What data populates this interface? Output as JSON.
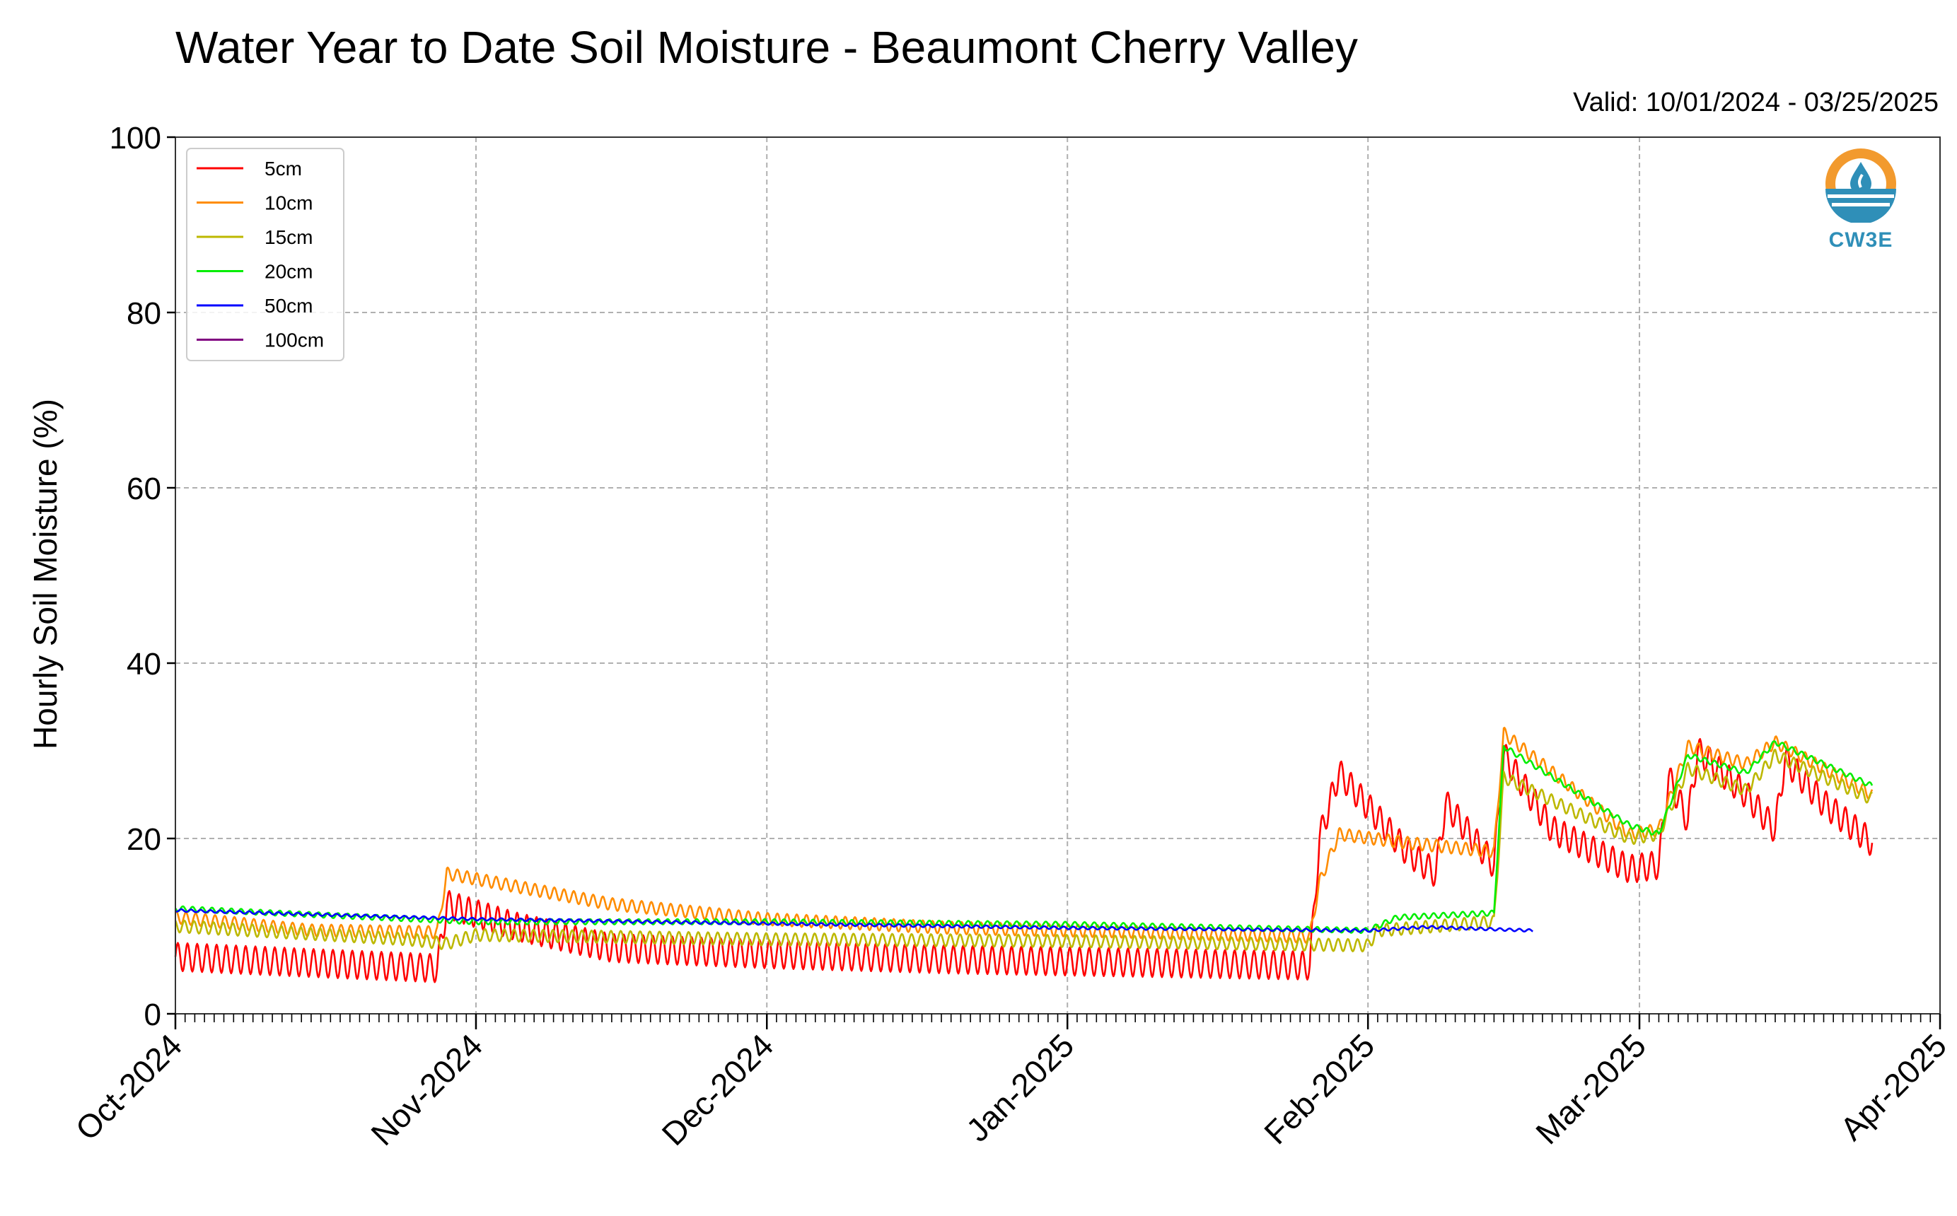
{
  "title": "Water Year to Date Soil Moisture - Beaumont Cherry Valley",
  "valid_label": "Valid: 10/01/2024 - 03/25/2025",
  "logo": {
    "text": "CW3E",
    "icon": "water-drop-logo-icon",
    "colors": {
      "orange": "#f29a2e",
      "blue": "#2f8fb8"
    }
  },
  "chart_data": {
    "type": "line",
    "title": "Water Year to Date Soil Moisture - Beaumont Cherry Valley",
    "xlabel": "",
    "ylabel": "Hourly Soil Moisture (%)",
    "x_range": [
      "2024-10-01",
      "2025-04-01"
    ],
    "ylim": [
      0,
      100
    ],
    "y_ticks": [
      0,
      20,
      40,
      60,
      80,
      100
    ],
    "x_ticks": [
      {
        "date": "2024-10-01",
        "label": "Oct-2024"
      },
      {
        "date": "2024-11-01",
        "label": "Nov-2024"
      },
      {
        "date": "2024-12-01",
        "label": "Dec-2024"
      },
      {
        "date": "2025-01-01",
        "label": "Jan-2025"
      },
      {
        "date": "2025-02-01",
        "label": "Feb-2025"
      },
      {
        "date": "2025-03-01",
        "label": "Mar-2025"
      },
      {
        "date": "2025-04-01",
        "label": "Apr-2025"
      }
    ],
    "grid": true,
    "legend_position": "top-left",
    "series": [
      {
        "name": "5cm",
        "color": "#ff0000",
        "points": [
          [
            "2024-10-01",
            6.5
          ],
          [
            "2024-10-15",
            5.8
          ],
          [
            "2024-10-28",
            5.2
          ],
          [
            "2024-10-29",
            12.5
          ],
          [
            "2024-11-05",
            10
          ],
          [
            "2024-11-15",
            7.5
          ],
          [
            "2024-12-01",
            6.8
          ],
          [
            "2024-12-20",
            6.2
          ],
          [
            "2025-01-10",
            5.8
          ],
          [
            "2025-01-26",
            5.5
          ],
          [
            "2025-01-27",
            20
          ],
          [
            "2025-01-29",
            27.5
          ],
          [
            "2025-02-05",
            18.5
          ],
          [
            "2025-02-08",
            16
          ],
          [
            "2025-02-09",
            24
          ],
          [
            "2025-02-14",
            17
          ],
          [
            "2025-02-15",
            29.5
          ],
          [
            "2025-02-20",
            21
          ],
          [
            "2025-02-28",
            16.5
          ],
          [
            "2025-03-03",
            17
          ],
          [
            "2025-03-04",
            27
          ],
          [
            "2025-03-06",
            22
          ],
          [
            "2025-03-07",
            30
          ],
          [
            "2025-03-12",
            25
          ],
          [
            "2025-03-15",
            21
          ],
          [
            "2025-03-16",
            29
          ],
          [
            "2025-03-20",
            24
          ],
          [
            "2025-03-25",
            19.5
          ]
        ],
        "diurnal": 1.6
      },
      {
        "name": "10cm",
        "color": "#ff8c00",
        "points": [
          [
            "2024-10-01",
            11
          ],
          [
            "2024-10-15",
            9.5
          ],
          [
            "2024-10-28",
            9.3
          ],
          [
            "2024-10-29",
            16
          ],
          [
            "2024-11-15",
            12.5
          ],
          [
            "2024-12-01",
            10.8
          ],
          [
            "2024-12-20",
            9.8
          ],
          [
            "2025-01-10",
            9.3
          ],
          [
            "2025-01-26",
            8.8
          ],
          [
            "2025-01-27",
            15
          ],
          [
            "2025-01-29",
            20.5
          ],
          [
            "2025-02-05",
            19.5
          ],
          [
            "2025-02-14",
            18.5
          ],
          [
            "2025-02-15",
            32
          ],
          [
            "2025-02-28",
            20.5
          ],
          [
            "2025-03-03",
            21
          ],
          [
            "2025-03-06",
            30.5
          ],
          [
            "2025-03-12",
            28.5
          ],
          [
            "2025-03-15",
            31
          ],
          [
            "2025-03-25",
            25
          ]
        ],
        "diurnal": 0.7
      },
      {
        "name": "15cm",
        "color": "#bdb800",
        "points": [
          [
            "2024-10-01",
            10
          ],
          [
            "2024-10-25",
            8.5
          ],
          [
            "2024-10-29",
            8
          ],
          [
            "2024-11-01",
            9
          ],
          [
            "2024-12-01",
            8.5
          ],
          [
            "2025-01-01",
            8.3
          ],
          [
            "2025-02-01",
            7.8
          ],
          [
            "2025-02-02",
            9.5
          ],
          [
            "2025-02-14",
            10.5
          ],
          [
            "2025-02-15",
            27
          ],
          [
            "2025-02-28",
            20
          ],
          [
            "2025-03-03",
            20.5
          ],
          [
            "2025-03-06",
            28
          ],
          [
            "2025-03-12",
            25.5
          ],
          [
            "2025-03-15",
            29.5
          ],
          [
            "2025-03-25",
            24.5
          ]
        ],
        "diurnal": 0.7
      },
      {
        "name": "20cm",
        "color": "#00ee00",
        "points": [
          [
            "2024-10-01",
            12
          ],
          [
            "2024-11-01",
            10.5
          ],
          [
            "2024-12-01",
            10.5
          ],
          [
            "2025-01-01",
            10.2
          ],
          [
            "2025-02-01",
            9.5
          ],
          [
            "2025-02-04",
            11
          ],
          [
            "2025-02-14",
            11.5
          ],
          [
            "2025-02-15",
            30.5
          ],
          [
            "2025-02-28",
            21.5
          ],
          [
            "2025-03-03",
            20.5
          ],
          [
            "2025-03-06",
            29.5
          ],
          [
            "2025-03-12",
            27.5
          ],
          [
            "2025-03-15",
            31
          ],
          [
            "2025-03-25",
            26
          ]
        ],
        "diurnal": 0.3
      },
      {
        "name": "50cm",
        "color": "#0000ff",
        "points": [
          [
            "2024-10-01",
            11.8
          ],
          [
            "2024-11-01",
            10.8
          ],
          [
            "2024-12-01",
            10.3
          ],
          [
            "2025-01-01",
            9.8
          ],
          [
            "2025-02-01",
            9.5
          ],
          [
            "2025-02-07",
            9.9
          ],
          [
            "2025-02-18",
            9.5
          ]
        ],
        "diurnal": 0.15
      },
      {
        "name": "100cm",
        "color": "#800080",
        "points": [],
        "diurnal": 0
      }
    ]
  }
}
